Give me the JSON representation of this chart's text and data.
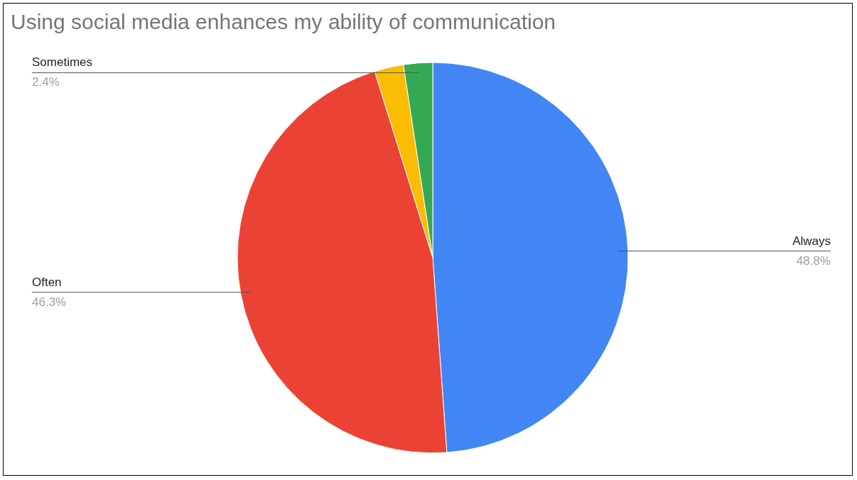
{
  "chart_data": {
    "type": "pie",
    "title": "Using social media enhances my ability of communication",
    "categories": [
      "Always",
      "Often",
      null,
      "Sometimes"
    ],
    "values": [
      48.8,
      46.3,
      2.4,
      2.4
    ],
    "colors": [
      "#4285f4",
      "#ea4335",
      "#fbbc04",
      "#34a853"
    ],
    "value_labels": [
      "48.8%",
      "46.3%",
      null,
      "2.4%"
    ],
    "legend": false
  }
}
